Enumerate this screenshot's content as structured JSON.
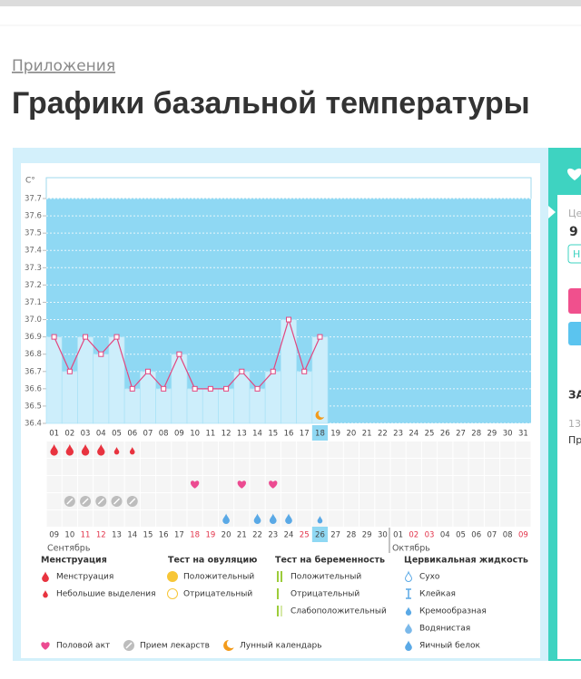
{
  "header": {
    "breadcrumb": "Приложения",
    "title": "Графики базальной температуры"
  },
  "chart_data": {
    "type": "line",
    "y_label": "C°",
    "categories": [
      "01",
      "02",
      "03",
      "04",
      "05",
      "06",
      "07",
      "08",
      "09",
      "10",
      "11",
      "12",
      "13",
      "14",
      "15",
      "16",
      "17",
      "18",
      "19",
      "20",
      "21",
      "22",
      "23",
      "24",
      "25",
      "26",
      "27",
      "28",
      "29",
      "30",
      "31"
    ],
    "values": [
      36.9,
      36.7,
      36.9,
      36.8,
      36.9,
      36.6,
      36.7,
      36.6,
      36.8,
      36.6,
      36.6,
      36.6,
      36.7,
      36.6,
      36.7,
      37.0,
      36.7,
      36.9,
      null,
      null,
      null,
      null,
      null,
      null,
      null,
      null,
      null,
      null,
      null,
      null,
      null
    ],
    "ylim": [
      36.4,
      37.7
    ],
    "yticks": [
      36.4,
      36.5,
      36.6,
      36.7,
      36.8,
      36.9,
      {
        "value": 37,
        "label": "37.0"
      },
      37.1,
      37.2,
      37.3,
      37.4,
      37.5,
      37.6,
      37.7
    ],
    "line_color": "#e2467f",
    "bar_color": "#cdeefb",
    "plot_color": "#8fd8f3",
    "grid": true
  },
  "symbols": {
    "menstruation": [
      true,
      true,
      true,
      true,
      false,
      false,
      false,
      false,
      false,
      false,
      false,
      false,
      false,
      false,
      false,
      false,
      false,
      false,
      false,
      false,
      false,
      false,
      false,
      false,
      false,
      false,
      false,
      false,
      false,
      false,
      false
    ],
    "spotting": [
      false,
      false,
      false,
      false,
      true,
      true,
      false,
      false,
      false,
      false,
      false,
      false,
      false,
      false,
      false,
      false,
      false,
      false,
      false,
      false,
      false,
      false,
      false,
      false,
      false,
      false,
      false,
      false,
      false,
      false,
      false
    ],
    "intercourse": [
      false,
      false,
      false,
      false,
      false,
      false,
      false,
      false,
      false,
      true,
      false,
      false,
      true,
      false,
      true,
      false,
      false,
      false,
      false,
      false,
      false,
      false,
      false,
      false,
      false,
      false,
      false,
      false,
      false,
      false,
      false
    ],
    "medication": [
      false,
      true,
      true,
      true,
      true,
      true,
      false,
      false,
      false,
      false,
      false,
      false,
      false,
      false,
      false,
      false,
      false,
      false,
      false,
      false,
      false,
      false,
      false,
      false,
      false,
      false,
      false,
      false,
      false,
      false,
      false
    ],
    "cervical_watery": [
      false,
      false,
      false,
      false,
      false,
      false,
      false,
      false,
      false,
      false,
      false,
      true,
      false,
      true,
      true,
      true,
      false,
      false,
      false,
      false,
      false,
      false,
      false,
      false,
      false,
      false,
      false,
      false,
      false,
      false,
      false
    ],
    "cervical_creamy": [
      false,
      false,
      false,
      false,
      false,
      false,
      false,
      false,
      false,
      false,
      false,
      false,
      false,
      false,
      false,
      false,
      false,
      true,
      false,
      false,
      false,
      false,
      false,
      false,
      false,
      false,
      false,
      false,
      false,
      false,
      false
    ],
    "moon": [
      false,
      false,
      false,
      false,
      false,
      false,
      false,
      false,
      false,
      false,
      false,
      false,
      false,
      false,
      false,
      false,
      false,
      true,
      false,
      false,
      false,
      false,
      false,
      false,
      false,
      false,
      false,
      false,
      false,
      false,
      false
    ]
  },
  "calendar": [
    {
      "label": "09"
    },
    {
      "label": "10"
    },
    {
      "label": "11",
      "red": true
    },
    {
      "label": "12",
      "red": true
    },
    {
      "label": "13"
    },
    {
      "label": "14"
    },
    {
      "label": "15"
    },
    {
      "label": "16"
    },
    {
      "label": "17"
    },
    {
      "label": "18",
      "red": true
    },
    {
      "label": "19",
      "red": true
    },
    {
      "label": "20"
    },
    {
      "label": "21"
    },
    {
      "label": "22"
    },
    {
      "label": "23"
    },
    {
      "label": "24"
    },
    {
      "label": "25",
      "red": true
    },
    {
      "label": "26",
      "highlight": true
    },
    {
      "label": "27"
    },
    {
      "label": "28"
    },
    {
      "label": "29"
    },
    {
      "label": "30"
    },
    {
      "label": "01",
      "month_start": true
    },
    {
      "label": "02",
      "red": true
    },
    {
      "label": "03",
      "red": true
    },
    {
      "label": "04"
    },
    {
      "label": "05"
    },
    {
      "label": "06"
    },
    {
      "label": "07"
    },
    {
      "label": "08"
    },
    {
      "label": "09",
      "red": true
    }
  ],
  "months": [
    "Сентябрь",
    "Октябрь"
  ],
  "legend": [
    {
      "title": "Менструация",
      "items": [
        "Менструация",
        "Небольшие выделения"
      ]
    },
    {
      "title": "Тест на овуляцию",
      "items": [
        "Положительный",
        "Отрицательный"
      ]
    },
    {
      "title": "Тест на беременность",
      "items": [
        "Положительный",
        "Отрицательный",
        "Слабоположительный"
      ]
    },
    {
      "title": "Цервикальная жидкость",
      "items": [
        "Сухо",
        "Клейкая",
        "Кремообразная",
        "Водянистая",
        "Яичный белок"
      ]
    }
  ],
  "legend_extra": [
    "Половой акт",
    "Прием лекарств",
    "Лунный календарь"
  ],
  "panel": {
    "label": "Це",
    "value": "9",
    "button": "Н",
    "heading": "ЗА",
    "date": "13",
    "text": "Пр"
  }
}
